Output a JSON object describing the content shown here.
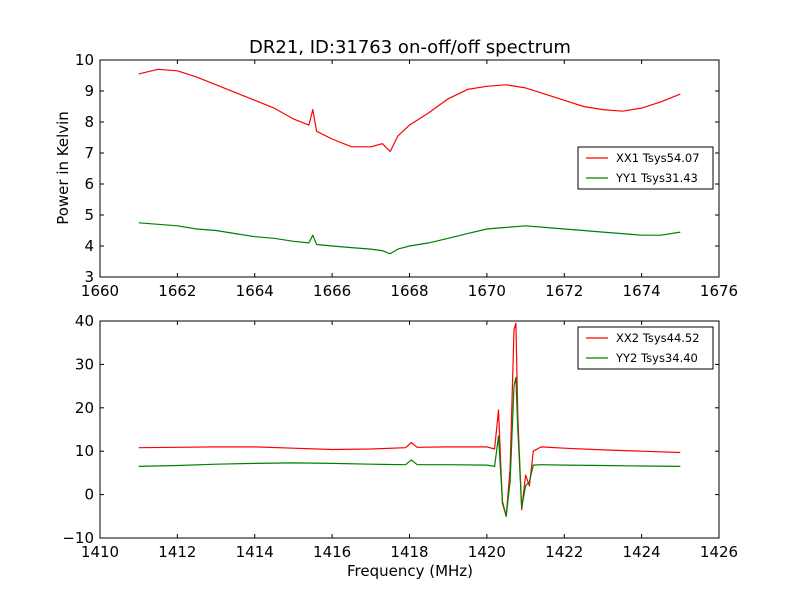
{
  "chart_data": [
    {
      "type": "line",
      "title": "DR21, ID:31763 on-off/off spectrum",
      "xlabel": "",
      "ylabel": "Power in Kelvin",
      "xlim": [
        1660,
        1676
      ],
      "ylim": [
        3,
        10
      ],
      "xticks": [
        "1660",
        "1662",
        "1664",
        "1666",
        "1668",
        "1670",
        "1672",
        "1674",
        "1676"
      ],
      "yticks": [
        "3",
        "4",
        "5",
        "6",
        "7",
        "8",
        "9",
        "10"
      ],
      "legend_position": "center-right",
      "grid": false,
      "series": [
        {
          "name": "XX1 Tsys54.07",
          "color": "#ff0000",
          "x": [
            1661.0,
            1661.5,
            1662.0,
            1662.5,
            1663.0,
            1663.5,
            1664.0,
            1664.5,
            1665.0,
            1665.4,
            1665.5,
            1665.6,
            1666.0,
            1666.5,
            1667.0,
            1667.3,
            1667.5,
            1667.7,
            1668.0,
            1668.5,
            1669.0,
            1669.5,
            1670.0,
            1670.5,
            1671.0,
            1671.5,
            1672.0,
            1672.5,
            1673.0,
            1673.5,
            1674.0,
            1674.5,
            1675.0
          ],
          "y": [
            9.55,
            9.7,
            9.65,
            9.45,
            9.2,
            8.95,
            8.7,
            8.45,
            8.1,
            7.9,
            8.4,
            7.7,
            7.45,
            7.2,
            7.2,
            7.3,
            7.05,
            7.55,
            7.9,
            8.3,
            8.75,
            9.05,
            9.15,
            9.2,
            9.1,
            8.9,
            8.7,
            8.5,
            8.4,
            8.35,
            8.45,
            8.65,
            8.9
          ]
        },
        {
          "name": "YY1 Tsys31.43",
          "color": "#008000",
          "x": [
            1661.0,
            1661.5,
            1662.0,
            1662.5,
            1663.0,
            1663.5,
            1664.0,
            1664.5,
            1665.0,
            1665.4,
            1665.5,
            1665.6,
            1666.0,
            1666.5,
            1667.0,
            1667.3,
            1667.5,
            1667.7,
            1668.0,
            1668.5,
            1669.0,
            1669.5,
            1670.0,
            1670.5,
            1671.0,
            1671.5,
            1672.0,
            1672.5,
            1673.0,
            1673.5,
            1674.0,
            1674.5,
            1675.0
          ],
          "y": [
            4.75,
            4.7,
            4.65,
            4.55,
            4.5,
            4.4,
            4.3,
            4.25,
            4.15,
            4.1,
            4.35,
            4.05,
            4.0,
            3.95,
            3.9,
            3.85,
            3.75,
            3.9,
            4.0,
            4.1,
            4.25,
            4.4,
            4.55,
            4.6,
            4.65,
            4.6,
            4.55,
            4.5,
            4.45,
            4.4,
            4.35,
            4.35,
            4.45
          ]
        }
      ]
    },
    {
      "type": "line",
      "title": "",
      "xlabel": "Frequency (MHz)",
      "ylabel": "",
      "xlim": [
        1410,
        1426
      ],
      "ylim": [
        -10,
        40
      ],
      "xticks": [
        "1410",
        "1412",
        "1414",
        "1416",
        "1418",
        "1420",
        "1422",
        "1424",
        "1426"
      ],
      "yticks": [
        "−10",
        "0",
        "10",
        "20",
        "30",
        "40"
      ],
      "legend_position": "top-right",
      "grid": false,
      "series": [
        {
          "name": "XX2 Tsys44.52",
          "color": "#ff0000",
          "x": [
            1411.0,
            1412.0,
            1413.0,
            1414.0,
            1415.0,
            1416.0,
            1417.0,
            1417.9,
            1418.05,
            1418.2,
            1419.0,
            1420.0,
            1420.2,
            1420.3,
            1420.4,
            1420.5,
            1420.6,
            1420.7,
            1420.75,
            1420.8,
            1420.9,
            1421.0,
            1421.1,
            1421.2,
            1421.4,
            1422.0,
            1423.0,
            1424.0,
            1425.0
          ],
          "y": [
            10.8,
            10.9,
            11.0,
            11.0,
            10.7,
            10.4,
            10.5,
            10.8,
            12.0,
            10.9,
            11.0,
            11.0,
            10.5,
            19.5,
            -2.0,
            -5.0,
            6.0,
            38.0,
            39.5,
            18.0,
            -3.5,
            4.5,
            2.0,
            10.0,
            11.0,
            10.7,
            10.3,
            10.0,
            9.7
          ]
        },
        {
          "name": "YY2 Tsys34.40",
          "color": "#008000",
          "x": [
            1411.0,
            1412.0,
            1413.0,
            1414.0,
            1415.0,
            1416.0,
            1417.0,
            1417.9,
            1418.05,
            1418.2,
            1419.0,
            1420.0,
            1420.2,
            1420.3,
            1420.4,
            1420.5,
            1420.6,
            1420.7,
            1420.75,
            1420.8,
            1420.9,
            1421.0,
            1421.1,
            1421.2,
            1421.4,
            1422.0,
            1423.0,
            1424.0,
            1425.0
          ],
          "y": [
            6.5,
            6.7,
            7.0,
            7.2,
            7.3,
            7.2,
            7.0,
            6.9,
            8.0,
            6.9,
            6.9,
            6.8,
            6.5,
            13.5,
            -1.5,
            -5.0,
            3.0,
            25.0,
            27.0,
            15.0,
            -3.0,
            2.0,
            3.0,
            6.8,
            6.9,
            6.8,
            6.7,
            6.6,
            6.5
          ]
        }
      ]
    }
  ]
}
